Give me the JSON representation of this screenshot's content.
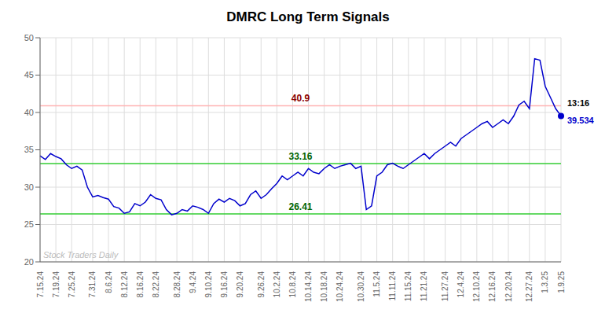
{
  "chart_data": {
    "type": "line",
    "title": "DMRC Long Term Signals",
    "categories": [
      "7.15.24",
      null,
      null,
      "7.19.24",
      null,
      null,
      "7.25.24",
      null,
      null,
      null,
      "7.31.24",
      null,
      null,
      "8.6.24",
      null,
      null,
      "8.12.24",
      null,
      null,
      "8.16.24",
      null,
      null,
      "8.22.24",
      null,
      null,
      null,
      "8.28.24",
      null,
      null,
      "9.4.24",
      null,
      null,
      "9.10.24",
      null,
      null,
      "9.16.24",
      null,
      null,
      "9.20.24",
      null,
      null,
      null,
      "9.26.24",
      null,
      null,
      "10.2.24",
      null,
      null,
      "10.8.24",
      null,
      null,
      "10.14.24",
      null,
      null,
      "10.18.24",
      null,
      null,
      "10.24.24",
      null,
      null,
      null,
      "10.30.24",
      null,
      null,
      "11.5.24",
      null,
      null,
      "11.11.24",
      null,
      null,
      "11.15.24",
      null,
      null,
      "11.21.24",
      null,
      null,
      null,
      "11.27.24",
      null,
      null,
      "12.4.24",
      null,
      null,
      "12.10.24",
      null,
      null,
      "12.16.24",
      null,
      null,
      "12.20.24",
      null,
      null,
      null,
      "12.27.24",
      null,
      null,
      "1.3.25",
      null,
      null,
      "1.9.25"
    ],
    "values": [
      34.2,
      33.7,
      34.5,
      34.1,
      33.8,
      33.0,
      32.5,
      32.8,
      32.3,
      30.0,
      28.7,
      28.9,
      28.6,
      28.4,
      27.4,
      27.2,
      26.5,
      26.7,
      27.8,
      27.5,
      28.0,
      29.0,
      28.5,
      28.3,
      27.0,
      26.3,
      26.5,
      27.0,
      26.8,
      27.5,
      27.3,
      27.0,
      26.5,
      27.8,
      28.4,
      28.0,
      28.5,
      28.2,
      27.5,
      27.8,
      29.0,
      29.5,
      28.5,
      29.0,
      29.8,
      30.5,
      31.5,
      31.0,
      31.5,
      32.0,
      31.5,
      32.5,
      32.0,
      31.8,
      32.5,
      33.0,
      32.5,
      32.8,
      33.0,
      33.2,
      32.5,
      32.8,
      27.0,
      27.5,
      31.5,
      32.0,
      33.0,
      33.2,
      32.8,
      32.5,
      33.0,
      33.5,
      34.0,
      34.5,
      33.8,
      34.5,
      35.0,
      35.5,
      36.0,
      35.5,
      36.5,
      37.0,
      37.5,
      38.0,
      38.5,
      38.8,
      38.0,
      38.5,
      39.0,
      38.5,
      39.5,
      41.0,
      41.5,
      40.5,
      47.2,
      47.0,
      43.5,
      42.0,
      40.5,
      39.534
    ],
    "color": "#0000cc",
    "ylim": [
      20,
      50
    ],
    "yticks": [
      20,
      25,
      30,
      35,
      40,
      45,
      50
    ],
    "grid": true,
    "reference_lines": [
      {
        "y": 40.9,
        "label": "40.9",
        "color": "#ffb3b3",
        "label_color": "darkred"
      },
      {
        "y": 33.16,
        "label": "33.16",
        "color": "#33cc33",
        "label_color": "darkgreen"
      },
      {
        "y": 26.41,
        "label": "26.41",
        "color": "#33cc33",
        "label_color": "darkgreen"
      }
    ],
    "end_marker": {
      "color": "#0000cc",
      "annotations": [
        {
          "text": "13:16",
          "color": "#000000"
        },
        {
          "text": "39.534",
          "color": "#0000cc"
        }
      ]
    },
    "watermark": {
      "text": "Stock Traders Daily",
      "color": "#bbbbbb"
    }
  }
}
